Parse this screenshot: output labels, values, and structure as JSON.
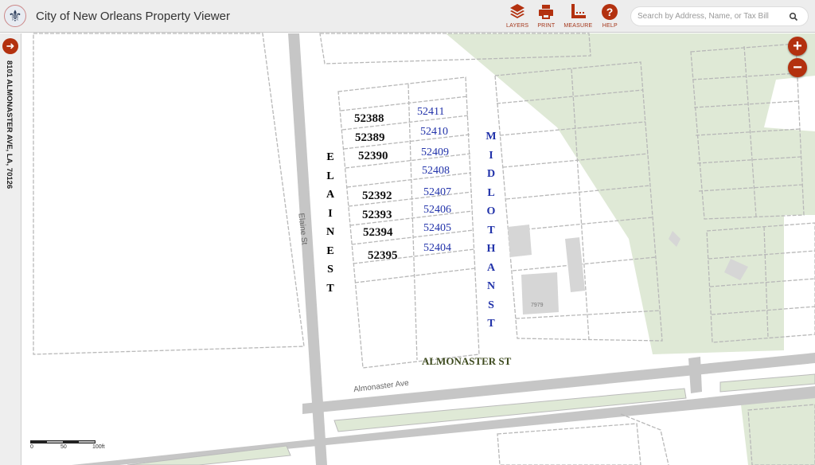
{
  "header": {
    "title": "City of New Orleans Property Viewer",
    "logo": "fleur-de-lis-logo",
    "tools": [
      {
        "label": "LAYERS",
        "icon": "layers-icon"
      },
      {
        "label": "PRINT",
        "icon": "print-icon"
      },
      {
        "label": "MEASURE",
        "icon": "measure-icon"
      },
      {
        "label": "HELP",
        "icon": "help-icon"
      }
    ],
    "search_placeholder": "Search by Address, Name, or Tax Bill"
  },
  "sidebar": {
    "address": "8101 ALMONASTER AVE, LA, 70126",
    "toggle_icon": "arrow-right-icon"
  },
  "zoom": {
    "in": "+",
    "out": "−"
  },
  "map": {
    "parcel_labels_black": [
      "52388",
      "52389",
      "52390",
      "52392",
      "52393",
      "52394",
      "52395"
    ],
    "parcel_labels_blue": [
      "52411",
      "52410",
      "52409",
      "52408",
      "52407",
      "52406",
      "52405",
      "52404"
    ],
    "street_labels": {
      "elaine_annot": "ELAINE ST",
      "midlothan_annot": "MIDLOTHAN ST",
      "almonaster_st": "ALMONASTER ST",
      "elaine_road": "Elaine St",
      "almonaster_ave": "Almonaster Ave",
      "address_number": "7979"
    },
    "scale": {
      "t0": "0",
      "t1": "50",
      "t2": "100ft"
    },
    "colors": {
      "accent": "#b3310f",
      "park": "#dfe9d6",
      "road": "#c4c4c4",
      "parcel_line": "#b5b5b5",
      "blue_label": "#2233aa"
    }
  }
}
